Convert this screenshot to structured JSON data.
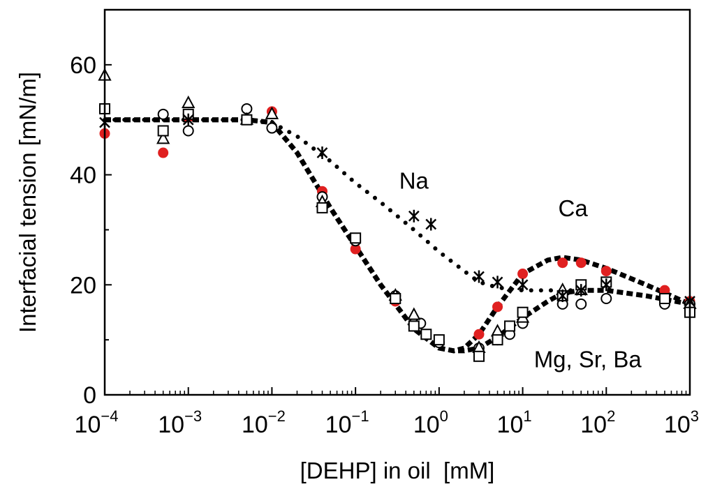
{
  "chart_data": {
    "type": "scatter",
    "title": "",
    "xlabel": "[DEHP] in oil  [mM]",
    "ylabel": "Interfacial tension [mN/m]",
    "x_scale": "log",
    "xlim": [
      0.0001,
      1000
    ],
    "ylim": [
      0,
      70
    ],
    "grid": false,
    "x_ticks": [
      {
        "base": "10",
        "exp": "−4",
        "value": 0.0001
      },
      {
        "base": "10",
        "exp": "−3",
        "value": 0.001
      },
      {
        "base": "10",
        "exp": "−2",
        "value": 0.01
      },
      {
        "base": "10",
        "exp": "−1",
        "value": 0.1
      },
      {
        "base": "10",
        "exp": "0",
        "value": 1
      },
      {
        "base": "10",
        "exp": "1",
        "value": 10
      },
      {
        "base": "10",
        "exp": "2",
        "value": 100
      },
      {
        "base": "10",
        "exp": "3",
        "value": 1000
      }
    ],
    "y_ticks": [
      {
        "label": "0",
        "value": 0
      },
      {
        "label": "20",
        "value": 20
      },
      {
        "label": "40",
        "value": 40
      },
      {
        "label": "60",
        "value": 60
      }
    ],
    "annotations": [
      {
        "text": "Na",
        "x": 0.5,
        "y": 39
      },
      {
        "text": "Ca",
        "x": 40,
        "y": 34
      },
      {
        "text": "Mg, Sr, Ba",
        "x": 60,
        "y": 6.5
      }
    ],
    "series": [
      {
        "marker": "filled-circle",
        "color": "#e02020",
        "x": [
          0.0001,
          0.0005,
          0.001,
          0.01,
          0.04,
          0.1,
          0.3,
          3,
          5,
          10,
          30,
          50,
          100,
          500,
          1000
        ],
        "y": [
          47.5,
          44,
          50.5,
          51.5,
          37,
          26.5,
          17,
          11,
          16,
          22,
          24,
          24,
          22.5,
          19,
          17
        ]
      },
      {
        "marker": "open-circle",
        "color": "#000000",
        "x": [
          0.0001,
          0.0005,
          0.001,
          0.001,
          0.005,
          0.01,
          0.04,
          0.1,
          0.3,
          0.5,
          0.6,
          1,
          3,
          5,
          7,
          10,
          30,
          50,
          100,
          500,
          1000
        ],
        "y": [
          52,
          51,
          51,
          48,
          52,
          48.5,
          36,
          28,
          18,
          13,
          13,
          9.5,
          8.5,
          10,
          11,
          13,
          16.5,
          16.5,
          17.5,
          16.5,
          16.5
        ]
      },
      {
        "marker": "open-triangle",
        "color": "#000000",
        "x": [
          0.0001,
          0.0005,
          0.001,
          0.005,
          0.01,
          0.04,
          0.3,
          0.5,
          3,
          5,
          10,
          30,
          50,
          1000
        ],
        "y": [
          58,
          46.5,
          53,
          50,
          51,
          35,
          18,
          14.5,
          8.5,
          11.5,
          14,
          19,
          19,
          16.5
        ]
      },
      {
        "marker": "open-square",
        "color": "#000000",
        "x": [
          0.0001,
          0.0005,
          0.001,
          0.005,
          0.04,
          0.1,
          0.3,
          0.5,
          0.7,
          1,
          3,
          5,
          7,
          10,
          30,
          50,
          100,
          500,
          1000
        ],
        "y": [
          52,
          48,
          51,
          50,
          34,
          28.5,
          17.5,
          12.5,
          11,
          10,
          7,
          10,
          12.5,
          15,
          18,
          20,
          20.5,
          17.5,
          15
        ]
      },
      {
        "marker": "cross",
        "color": "#000000",
        "x": [
          0.0001,
          0.001,
          0.04,
          0.5,
          0.8,
          3,
          5,
          10,
          30,
          50,
          100,
          1000
        ],
        "y": [
          49.5,
          50,
          44,
          32.5,
          31,
          21.5,
          20.5,
          20,
          18,
          19,
          20,
          17
        ]
      }
    ],
    "trend_curves": [
      {
        "name": "Na",
        "style": "dotted",
        "x": [
          0.0001,
          0.001,
          0.005,
          0.01,
          0.02,
          0.05,
          0.1,
          0.2,
          0.5,
          1,
          2,
          3,
          5,
          10,
          30,
          100,
          300,
          1000
        ],
        "y": [
          50,
          50,
          50,
          49.5,
          47,
          42.5,
          38.5,
          35,
          30,
          26,
          22.5,
          20.5,
          19.5,
          19,
          19,
          19,
          18,
          16.5
        ]
      },
      {
        "name": "Ca",
        "style": "dashed",
        "x": [
          0.0001,
          0.001,
          0.005,
          0.01,
          0.02,
          0.05,
          0.1,
          0.2,
          0.5,
          1,
          1.5,
          2,
          3,
          5,
          10,
          20,
          30,
          50,
          100,
          300,
          1000
        ],
        "y": [
          50,
          50,
          50,
          49.5,
          44,
          34,
          27,
          20,
          12,
          8.5,
          8,
          8.5,
          11,
          16,
          22,
          24.5,
          25,
          24.5,
          23,
          20,
          16.5
        ]
      },
      {
        "name": "Mg, Sr, Ba",
        "style": "dashed",
        "x": [
          0.0001,
          0.001,
          0.005,
          0.01,
          0.02,
          0.05,
          0.1,
          0.2,
          0.5,
          1,
          1.5,
          2,
          3,
          5,
          10,
          20,
          30,
          50,
          100,
          300,
          1000
        ],
        "y": [
          50,
          50,
          50,
          49.5,
          44,
          34,
          27,
          20,
          12,
          8.5,
          8,
          8,
          8.5,
          10.5,
          14,
          17,
          18.5,
          19,
          19,
          18,
          16.5
        ]
      }
    ]
  }
}
